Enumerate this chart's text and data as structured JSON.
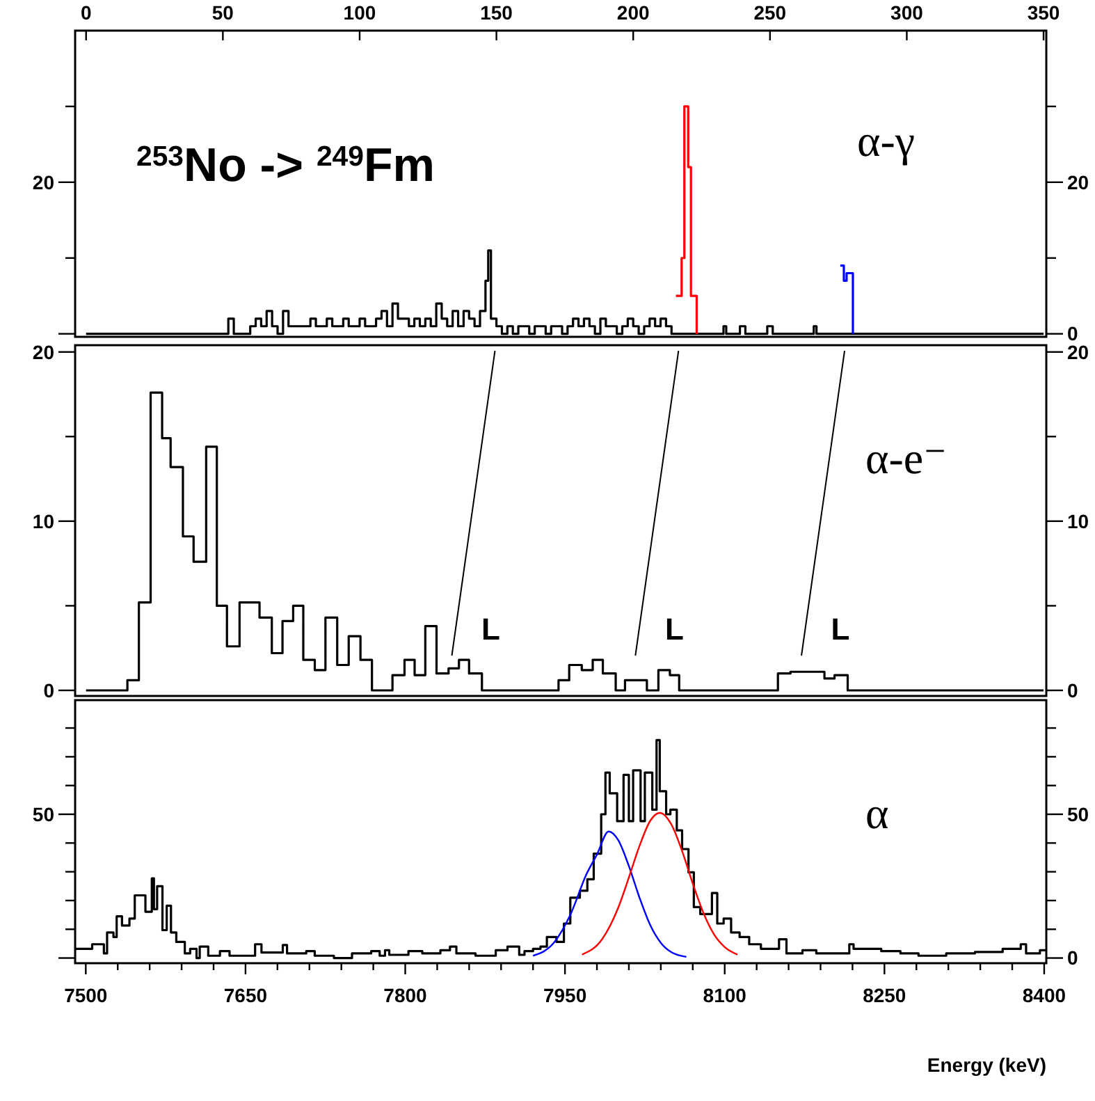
{
  "chart_data": [
    {
      "type": "step",
      "title": "$^{253}$No -> $^{249}$Fm",
      "subtitle": "α-γ",
      "xlim": [
        -4,
        351
      ],
      "xticks": [
        0,
        50,
        100,
        150,
        200,
        250,
        300,
        350
      ],
      "ylim": [
        -0.4,
        40
      ],
      "yticks": [
        0,
        {
          "value": 10,
          "label": null
        },
        20,
        {
          "value": 30,
          "label": null
        }
      ],
      "annotations": [
        "20"
      ],
      "series": [
        {
          "color": "#000000",
          "x": [
            0,
            52,
            54,
            60,
            62,
            64,
            66,
            68,
            70,
            72,
            74,
            82,
            84,
            88,
            90,
            94,
            96,
            100,
            102,
            106,
            108,
            110,
            112,
            114,
            118,
            120,
            122,
            124,
            126,
            128,
            130,
            132,
            134,
            136,
            138,
            140,
            142,
            144,
            146,
            147,
            148,
            150,
            152,
            154,
            156,
            158,
            162,
            164,
            168,
            170,
            174,
            176,
            178,
            180,
            182,
            184,
            186,
            188,
            190,
            194,
            196,
            198,
            200,
            202,
            204,
            206,
            208,
            210,
            212,
            214,
            233,
            234,
            239,
            241,
            249,
            251,
            266,
            267,
            350
          ],
          "values": [
            0,
            2,
            0,
            1,
            2,
            1,
            3,
            1,
            0,
            3,
            1,
            2,
            1,
            2,
            1,
            2,
            1,
            2,
            1,
            2,
            3,
            1,
            4,
            2,
            1,
            2,
            1,
            2,
            1,
            4,
            2,
            1,
            3,
            1,
            3,
            2,
            1,
            3,
            7,
            11,
            2,
            1,
            0,
            1,
            0,
            1,
            0,
            1,
            0,
            1,
            0,
            1,
            2,
            1,
            2,
            1,
            0,
            2,
            1,
            0,
            1,
            2,
            1,
            0,
            1,
            2,
            1,
            2,
            1,
            0,
            1,
            0,
            1,
            0,
            1,
            0,
            1,
            0,
            0
          ]
        },
        {
          "color": "#ff0000",
          "x": [
            215.6,
            217.7,
            218.7,
            220.1,
            221.1,
            223.2
          ],
          "values": [
            5,
            10,
            30,
            22,
            5,
            0
          ]
        },
        {
          "color": "#0000ff",
          "x": [
            275.7,
            277,
            278,
            279.3,
            280.3
          ],
          "values": [
            9,
            7,
            8,
            8,
            0
          ]
        }
      ]
    },
    {
      "type": "step",
      "title": "α-e⁻",
      "xlim": [
        -4,
        351
      ],
      "tick_labels": "y",
      "ylim": [
        -0.33,
        20.4
      ],
      "yticks": [
        0,
        {
          "value": 5,
          "label": null
        },
        10,
        {
          "value": 15,
          "label": null
        },
        20
      ],
      "y2lim": [
        -0.33,
        20.4
      ],
      "y2ticks": [
        0,
        {
          "value": 5,
          "label": null
        },
        10,
        {
          "value": 15,
          "label": null
        },
        20
      ],
      "annotations": [
        "L",
        "L",
        "L"
      ],
      "series": [
        {
          "color": "#000000",
          "x": [
            0,
            15.1,
            19.3,
            23.6,
            27.8,
            30.9,
            35.4,
            39.3,
            43.9,
            47.8,
            51.5,
            56.1,
            63.4,
            67.9,
            71.8,
            75.7,
            79.4,
            83.6,
            87.5,
            91.8,
            96.0,
            100.3,
            104.5,
            112.0,
            116.4,
            120.1,
            124.0,
            128.1,
            132.5,
            136.3,
            140.0,
            144.7,
            172.7,
            176.6,
            181.2,
            185.2,
            188.9,
            193.6,
            197.0,
            205.0,
            209.2,
            213.4,
            216.8,
            252.9,
            257.5,
            269.9,
            273.6,
            278.4,
            350
          ],
          "values": [
            0,
            0.6,
            5.2,
            17.6,
            14.9,
            13.2,
            9.1,
            7.6,
            14.4,
            5.0,
            2.6,
            5.2,
            4.3,
            2.2,
            4.1,
            5.0,
            1.8,
            1.2,
            4.3,
            1.5,
            3.2,
            1.8,
            0,
            0.9,
            1.8,
            0.9,
            3.8,
            1.0,
            1.3,
            1.8,
            1.0,
            0,
            0.6,
            1.5,
            1.2,
            1.8,
            1.0,
            0,
            0.6,
            0,
            1.2,
            0.9,
            0,
            1.0,
            1.1,
            0.7,
            0.9,
            0,
            0
          ]
        }
      ]
    },
    {
      "type": "step",
      "title": "α",
      "xlabel": "Energy (keV)",
      "xlim": [
        7490,
        8402
      ],
      "xticks": [
        7500,
        {
          "value": 7530,
          "label": null
        },
        {
          "value": 7560,
          "label": null
        },
        {
          "value": 7590,
          "label": null
        },
        {
          "value": 7620,
          "label": null
        },
        7650,
        {
          "value": 7680,
          "label": null
        },
        {
          "value": 7710,
          "label": null
        },
        {
          "value": 7740,
          "label": null
        },
        {
          "value": 7770,
          "label": null
        },
        7800,
        {
          "value": 7830,
          "label": null
        },
        {
          "value": 7860,
          "label": null
        },
        {
          "value": 7890,
          "label": null
        },
        {
          "value": 7920,
          "label": null
        },
        7950,
        {
          "value": 7980,
          "label": null
        },
        {
          "value": 8010,
          "label": null
        },
        {
          "value": 8040,
          "label": null
        },
        {
          "value": 8070,
          "label": null
        },
        8100,
        {
          "value": 8130,
          "label": null
        },
        {
          "value": 8160,
          "label": null
        },
        {
          "value": 8190,
          "label": null
        },
        {
          "value": 8220,
          "label": null
        },
        8250,
        {
          "value": 8280,
          "label": null
        },
        {
          "value": 8310,
          "label": null
        },
        {
          "value": 8340,
          "label": null
        },
        {
          "value": 8370,
          "label": null
        },
        8400
      ],
      "ylim": [
        -1.8,
        89.7
      ],
      "yticks": [
        0,
        {
          "value": 10,
          "label": null
        },
        {
          "value": 20,
          "label": null
        },
        {
          "value": 30,
          "label": null
        },
        {
          "value": 40,
          "label": null
        },
        50,
        {
          "value": 60,
          "label": null
        },
        {
          "value": 70,
          "label": null
        },
        {
          "value": 80,
          "label": null
        }
      ],
      "annotations": [
        "50"
      ],
      "series": [
        {
          "color": "#000000",
          "x": [
            7490,
            7506,
            7517,
            7520,
            7526,
            7529,
            7534,
            7541,
            7546,
            7556,
            7562,
            7564,
            7567,
            7572,
            7576,
            7580,
            7585,
            7593,
            7598,
            7604,
            7607,
            7615,
            7626,
            7635,
            7659,
            7665,
            7685,
            7689,
            7707,
            7715,
            7733,
            7750,
            7768,
            7776,
            7781,
            7785,
            7803,
            7816,
            7833,
            7842,
            7848,
            7866,
            7885,
            7896,
            7907,
            7912,
            7920,
            7927,
            7933,
            7942,
            7949,
            7955,
            7964,
            7971,
            7977,
            7984,
            7988,
            7992,
            7999,
            8005,
            8010,
            8014,
            8021,
            8025,
            8032,
            8036,
            8039,
            8045,
            8049,
            8055,
            8060,
            8066,
            8071,
            8077,
            8088,
            8093,
            8099,
            8106,
            8114,
            8123,
            8134,
            8151,
            8158,
            8173,
            8186,
            8217,
            8221,
            8247,
            8265,
            8282,
            8308,
            8335,
            8361,
            8378,
            8383,
            8396,
            8402
          ],
          "values": [
            3.2,
            4.8,
            1.6,
            8.9,
            7.3,
            14.5,
            11.3,
            13.7,
            21.8,
            16.1,
            27.7,
            17,
            25,
            9.7,
            18.2,
            8.9,
            5.6,
            1.6,
            3.2,
            0,
            4,
            0.8,
            2.4,
            0.8,
            4.8,
            1.9,
            4.5,
            1.6,
            2.4,
            0.8,
            0,
            1.6,
            2.4,
            0.8,
            2.7,
            1.1,
            2.4,
            1.6,
            2.7,
            4,
            1.6,
            0.8,
            2.7,
            4,
            1.1,
            2.4,
            3.2,
            4,
            7.3,
            5.6,
            12,
            21,
            23.4,
            27.4,
            36.3,
            50,
            64.5,
            57.3,
            47.6,
            63.7,
            47.6,
            65.3,
            47.6,
            64.5,
            51.6,
            75.8,
            58,
            50,
            51.6,
            44.4,
            37.9,
            29.8,
            17.7,
            15.3,
            22.6,
            12,
            13.7,
            8.9,
            7.3,
            4.8,
            3.2,
            6.5,
            1.6,
            2.7,
            1.6,
            4.8,
            3.2,
            2.4,
            1.6,
            0.8,
            1.6,
            2.1,
            3.2,
            4.8,
            1.6,
            2.7,
            2.7
          ]
        },
        {
          "type": "line",
          "color": "#0000ff",
          "x": [
            7920,
            7940,
            7955,
            7970,
            7980,
            7991,
            8000,
            8010,
            8020,
            8030,
            8040,
            8050,
            8064
          ],
          "values": [
            0.8,
            5.5,
            15,
            29,
            36,
            44,
            41,
            32,
            21,
            11.5,
            5.3,
            2,
            0.4
          ]
        },
        {
          "type": "line",
          "color": "#ff0000",
          "x": [
            7966,
            7985,
            8000,
            8010,
            8020,
            8030,
            8039,
            8050,
            8060,
            8070,
            8080,
            8090,
            8100,
            8112
          ],
          "values": [
            1.2,
            6.6,
            17.5,
            28,
            39,
            47.7,
            50.5,
            46.4,
            37.2,
            25.9,
            15.7,
            8.2,
            3.8,
            1.2
          ]
        }
      ]
    }
  ]
}
